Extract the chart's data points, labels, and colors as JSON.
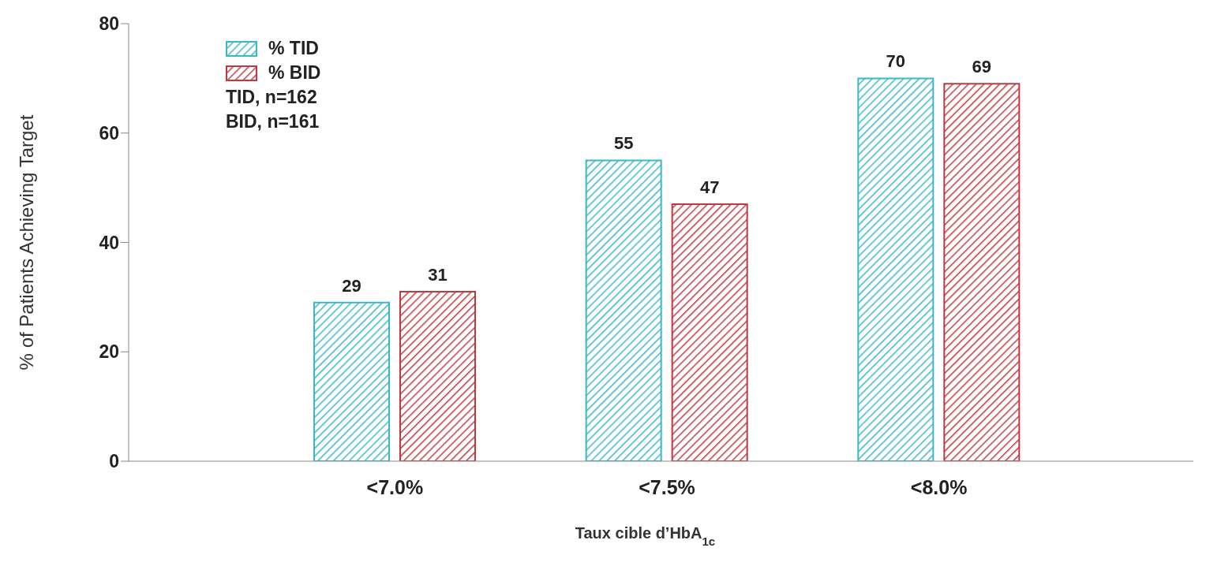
{
  "chart_data": {
    "type": "bar",
    "xlabel": "Taux cible d’HbA$_{1c}$",
    "ylabel": "% of Patients Achieving Target",
    "categories": [
      "<7.0%",
      "<7.5%",
      "<8.0%"
    ],
    "series": [
      {
        "name": "% TID",
        "color": "#3bb8c8",
        "values": [
          29,
          55,
          70
        ]
      },
      {
        "name": "% BID",
        "color": "#c0393f",
        "values": [
          31,
          47,
          69
        ]
      }
    ],
    "ylim": [
      0,
      80
    ],
    "yticks": [
      0,
      20,
      40,
      60,
      80
    ],
    "legend": "top left",
    "data_labels": true,
    "annotations": [
      "TID, n=162",
      "BID, n=161"
    ]
  }
}
